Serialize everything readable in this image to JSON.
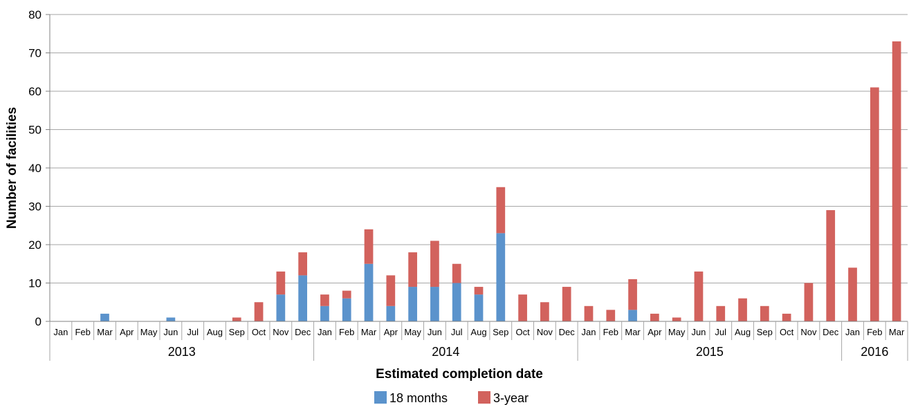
{
  "chart_data": {
    "type": "bar",
    "stacked": true,
    "xlabel": "Estimated completion date",
    "ylabel": "Number of facilities",
    "ylim": [
      0,
      80
    ],
    "yticks": [
      0,
      10,
      20,
      30,
      40,
      50,
      60,
      70,
      80
    ],
    "grid": "horizontal",
    "legend_position": "bottom",
    "categories": [
      "Jan",
      "Feb",
      "Mar",
      "Apr",
      "May",
      "Jun",
      "Jul",
      "Aug",
      "Sep",
      "Oct",
      "Nov",
      "Dec",
      "Jan",
      "Feb",
      "Mar",
      "Apr",
      "May",
      "Jun",
      "Jul",
      "Aug",
      "Sep",
      "Oct",
      "Nov",
      "Dec",
      "Jan",
      "Feb",
      "Mar",
      "Apr",
      "May",
      "Jun",
      "Jul",
      "Aug",
      "Sep",
      "Oct",
      "Nov",
      "Dec",
      "Jan",
      "Feb",
      "Mar"
    ],
    "year_groups": [
      {
        "label": "2013",
        "count": 12
      },
      {
        "label": "2014",
        "count": 12
      },
      {
        "label": "2015",
        "count": 12
      },
      {
        "label": "2016",
        "count": 3
      }
    ],
    "series": [
      {
        "name": "18 months",
        "color": "#5b93cc",
        "values": [
          0,
          0,
          2,
          0,
          0,
          1,
          0,
          0,
          0,
          0,
          7,
          12,
          4,
          6,
          15,
          4,
          9,
          9,
          10,
          7,
          23,
          0,
          0,
          0,
          0,
          0,
          3,
          0,
          0,
          0,
          0,
          0,
          0,
          0,
          0,
          0,
          0,
          0,
          0
        ]
      },
      {
        "name": "3-year",
        "color": "#d2625d",
        "values": [
          0,
          0,
          0,
          0,
          0,
          0,
          0,
          0,
          1,
          5,
          6,
          6,
          3,
          2,
          9,
          8,
          9,
          12,
          5,
          2,
          12,
          7,
          5,
          9,
          4,
          3,
          8,
          2,
          1,
          13,
          4,
          6,
          4,
          2,
          10,
          29,
          14,
          61,
          73
        ]
      }
    ]
  }
}
